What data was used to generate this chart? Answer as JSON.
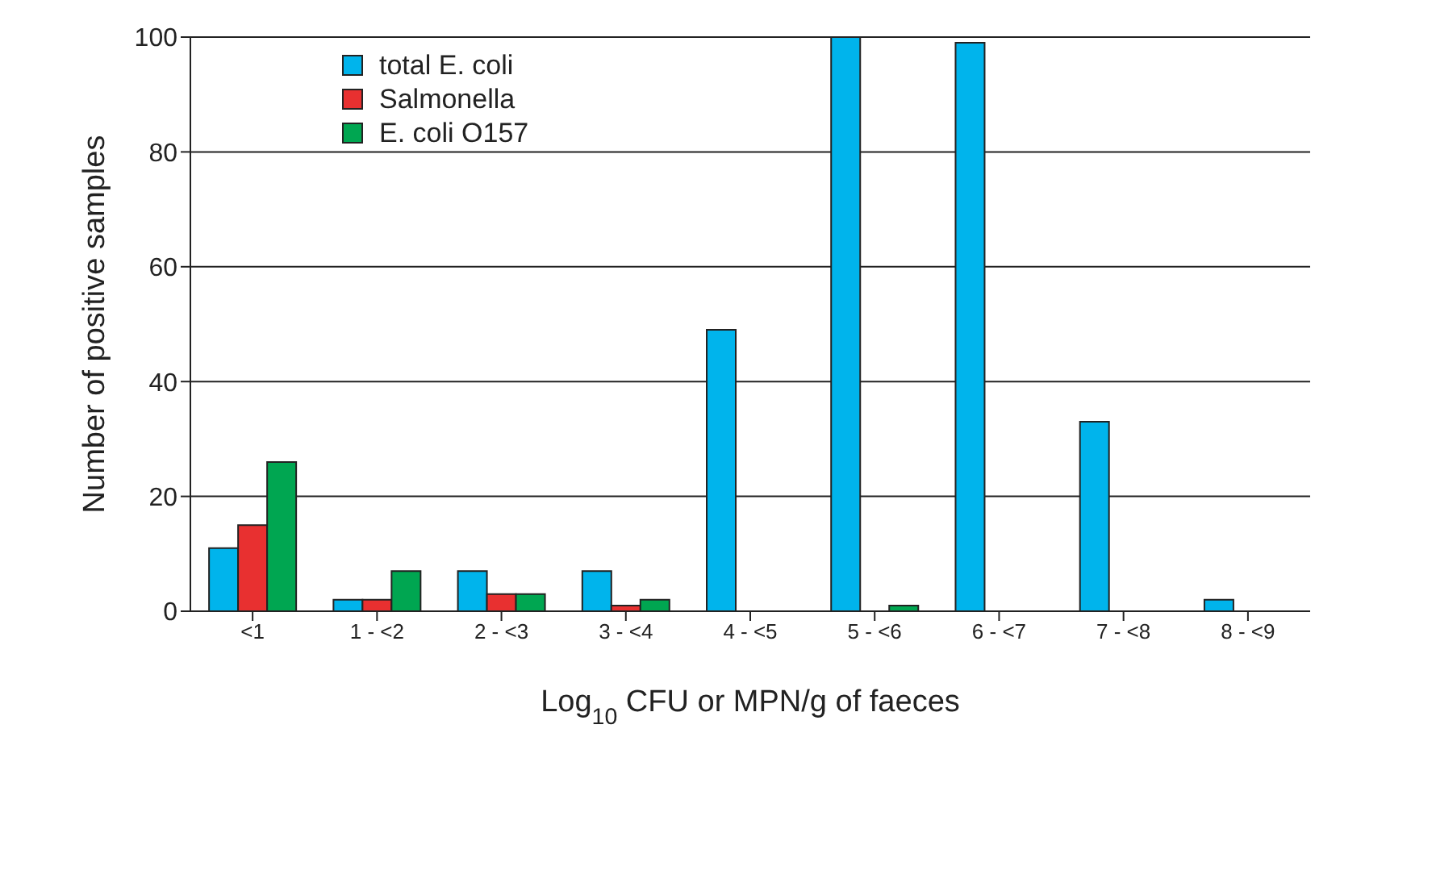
{
  "chart_data": {
    "type": "bar",
    "xlabel": "Log$_{10}$ CFU or MPN/g of faeces",
    "ylabel": "Number of positive samples",
    "categories": [
      "<1",
      "1 - <2",
      "2 - <3",
      "3 - <4",
      "4 - <5",
      "5 - <6",
      "6 - <7",
      "7 - <8",
      "8 - <9"
    ],
    "series": [
      {
        "name": "total E. coli",
        "color": "#00b4ec",
        "values": [
          11,
          2,
          7,
          7,
          49,
          100,
          99,
          33,
          2
        ]
      },
      {
        "name": "Salmonella",
        "color": "#e83030",
        "values": [
          15,
          2,
          3,
          1,
          0,
          0,
          0,
          0,
          0
        ]
      },
      {
        "name": "E. coli O157",
        "color": "#00a651",
        "values": [
          26,
          7,
          3,
          2,
          0,
          1,
          0,
          0,
          0
        ]
      }
    ],
    "ylim": [
      0,
      100
    ],
    "yticks": [
      0,
      20,
      40,
      60,
      80,
      100
    ],
    "grid": "y",
    "legend": "top left"
  }
}
